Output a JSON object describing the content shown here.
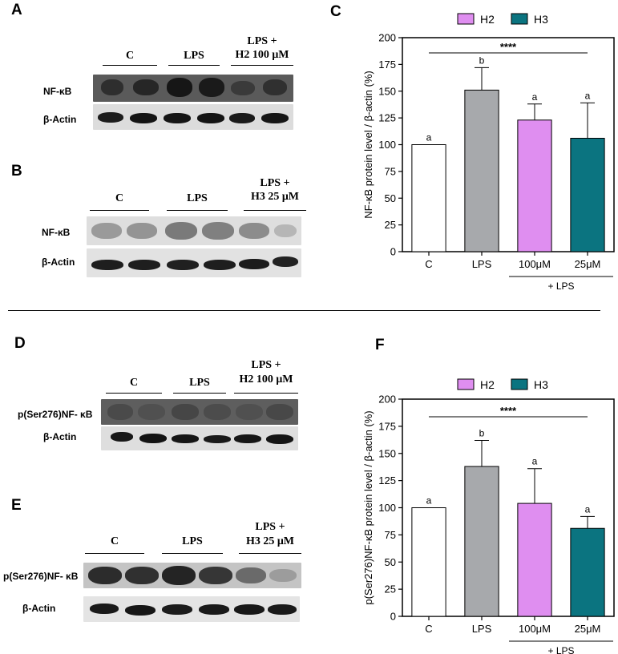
{
  "colors": {
    "control_bar": "#ffffff",
    "lps_bar": "#a7a9ac",
    "h2_bar": "#df8ef0",
    "h3_bar": "#0b7480",
    "axis": "#000000"
  },
  "blots": {
    "A": {
      "letter": "A",
      "groups": [
        {
          "lines": [
            "C"
          ]
        },
        {
          "lines": [
            "LPS"
          ]
        },
        {
          "lines": [
            "LPS +",
            "H2 100 μM"
          ]
        }
      ],
      "rows": [
        {
          "label": "NF-κB"
        },
        {
          "label": "β-Actin"
        }
      ]
    },
    "B": {
      "letter": "B",
      "groups": [
        {
          "lines": [
            "C"
          ]
        },
        {
          "lines": [
            "LPS"
          ]
        },
        {
          "lines": [
            "LPS +",
            "H3 25 μM"
          ]
        }
      ],
      "rows": [
        {
          "label": "NF-κB"
        },
        {
          "label": "β-Actin"
        }
      ]
    },
    "D": {
      "letter": "D",
      "groups": [
        {
          "lines": [
            "C"
          ]
        },
        {
          "lines": [
            "LPS"
          ]
        },
        {
          "lines": [
            "LPS +",
            "H2 100 μM"
          ]
        }
      ],
      "rows": [
        {
          "label": "p(Ser276)NF- κB"
        },
        {
          "label": "β-Actin"
        }
      ]
    },
    "E": {
      "letter": "E",
      "groups": [
        {
          "lines": [
            "C"
          ]
        },
        {
          "lines": [
            "LPS"
          ]
        },
        {
          "lines": [
            "LPS +",
            "H3 25 μM"
          ]
        }
      ],
      "rows": [
        {
          "label": "p(Ser276)NF- κB"
        },
        {
          "label": "β-Actin"
        }
      ]
    }
  },
  "chart_data": [
    {
      "panel": "C",
      "type": "bar",
      "ylabel": "NF-κB protein level / β-actin (%)",
      "ylim": [
        0,
        200
      ],
      "yticks": [
        0,
        25,
        50,
        75,
        100,
        125,
        150,
        175,
        200
      ],
      "categories": [
        "C",
        "LPS",
        "100μM",
        "25μM"
      ],
      "values": [
        100,
        151,
        123,
        106
      ],
      "errors": [
        0,
        21,
        15,
        33
      ],
      "letters": [
        "a",
        "b",
        "a",
        "a"
      ],
      "bar_colors": [
        "#ffffff",
        "#a7a9ac",
        "#df8ef0",
        "#0b7480"
      ],
      "legend": [
        {
          "name": "H2",
          "color": "#df8ef0"
        },
        {
          "name": "H3",
          "color": "#0b7480"
        }
      ],
      "legend_position": "top",
      "significance": "****",
      "bracket_label": "+ LPS",
      "grid": false
    },
    {
      "panel": "F",
      "type": "bar",
      "ylabel": "p(Ser276)NF-κB protein level / β-actin (%)",
      "ylim": [
        0,
        200
      ],
      "yticks": [
        0,
        25,
        50,
        75,
        100,
        125,
        150,
        175,
        200
      ],
      "categories": [
        "C",
        "LPS",
        "100μM",
        "25μM"
      ],
      "values": [
        100,
        138,
        104,
        81
      ],
      "errors": [
        0,
        24,
        32,
        11
      ],
      "letters": [
        "a",
        "b",
        "a",
        "a"
      ],
      "bar_colors": [
        "#ffffff",
        "#a7a9ac",
        "#df8ef0",
        "#0b7480"
      ],
      "legend": [
        {
          "name": "H2",
          "color": "#df8ef0"
        },
        {
          "name": "H3",
          "color": "#0b7480"
        }
      ],
      "legend_position": "top",
      "significance": "****",
      "bracket_label": "+ LPS",
      "grid": false
    }
  ]
}
